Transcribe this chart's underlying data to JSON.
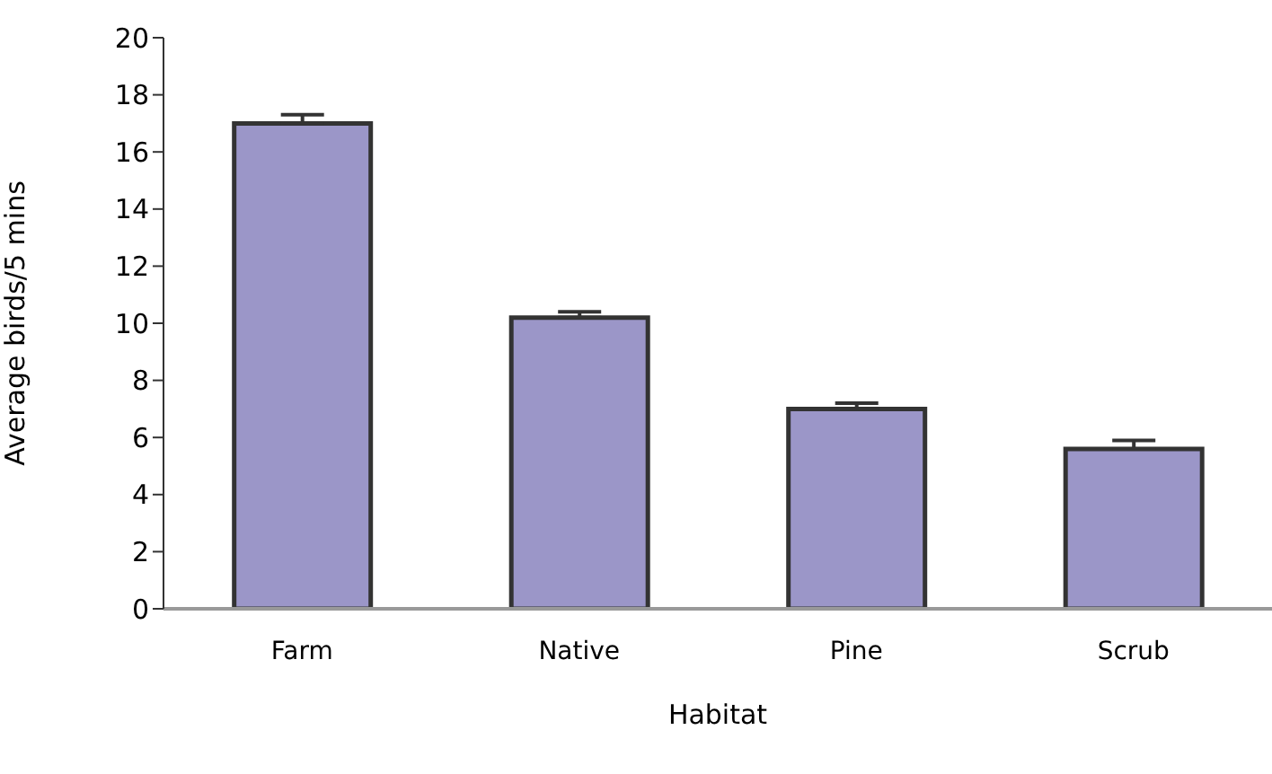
{
  "chart_data": {
    "type": "bar",
    "xlabel": "Habitat",
    "ylabel": "Average birds/5 mins",
    "categories": [
      "Farm",
      "Native",
      "Pine",
      "Scrub"
    ],
    "values": [
      17.0,
      10.2,
      7.0,
      5.6
    ],
    "errors": [
      [
        17.0,
        17.3
      ],
      [
        10.2,
        10.4
      ],
      [
        7.0,
        7.2
      ],
      [
        5.6,
        5.9
      ]
    ],
    "color": "#9b96c8",
    "ylim": [
      0,
      20
    ],
    "yticks": [
      0,
      2,
      4,
      6,
      8,
      10,
      12,
      14,
      16,
      18,
      20
    ],
    "grid": false,
    "legend": false
  }
}
